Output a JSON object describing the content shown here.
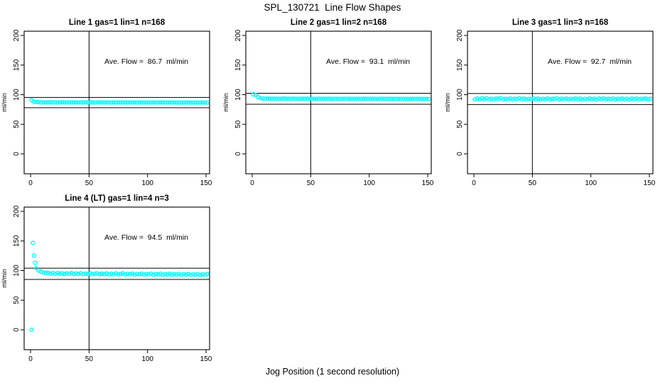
{
  "page": {
    "title": "SPL_130721  Line Flow Shapes",
    "xlabel": "Jog Position (1 second resolution)",
    "colors": {
      "background": "#ffffff",
      "point": "#00ffff",
      "axis": "#000000"
    }
  },
  "chart_data": [
    {
      "type": "scatter",
      "title": "Line 1 gas=1 lin=1 n=168",
      "ylabel": "ml/min",
      "ave_flow": 86.7,
      "annotation": "Ave. Flow =  86.7  ml/min",
      "annotation_pos": {
        "x": 99,
        "y": 152
      },
      "x_ticks": [
        0,
        50,
        100,
        150
      ],
      "y_ticks": [
        0,
        50,
        100,
        150,
        200
      ],
      "xlim": [
        -6,
        153
      ],
      "ylim": [
        -33,
        207
      ],
      "vline_x": 50,
      "hlines": [
        95.4,
        78.0
      ],
      "marker": "open-circle",
      "series": {
        "x_start": 1,
        "x_step": 2,
        "y": [
          90.5,
          88.2,
          87.4,
          87.8,
          87.0,
          86.7,
          87.3,
          86.9,
          87.5,
          86.8,
          87.2,
          86.6,
          87.0,
          87.4,
          86.8,
          87.1,
          86.7,
          87.3,
          86.9,
          87.2,
          86.6,
          87.0,
          86.8,
          87.3,
          86.7,
          87.1,
          86.9,
          86.6,
          87.2,
          86.8,
          87.0,
          86.7,
          87.2,
          86.9,
          86.6,
          87.1,
          86.8,
          87.0,
          86.6,
          86.9,
          87.1,
          86.7,
          86.9,
          86.6,
          87.0,
          86.8,
          86.6,
          86.9,
          86.7,
          87.0,
          86.6,
          86.8,
          86.9,
          86.6,
          86.8,
          87.0,
          86.6,
          86.9,
          86.7,
          86.8,
          86.6,
          86.9,
          86.7,
          86.8,
          86.5,
          86.8,
          86.6,
          86.9,
          86.5,
          86.7,
          86.8,
          86.5,
          86.7,
          86.6,
          86.8,
          86.5
        ]
      },
      "extra_points": []
    },
    {
      "type": "scatter",
      "title": "Line 2 gas=1 lin=2 n=168",
      "ylabel": "ml/min",
      "ave_flow": 93.1,
      "annotation": "Ave. Flow =  93.1  ml/min",
      "annotation_pos": {
        "x": 99,
        "y": 152
      },
      "x_ticks": [
        0,
        50,
        100,
        150
      ],
      "y_ticks": [
        0,
        50,
        100,
        150,
        200
      ],
      "xlim": [
        -6,
        153
      ],
      "ylim": [
        -33,
        207
      ],
      "vline_x": 50,
      "hlines": [
        102.4,
        83.8
      ],
      "marker": "open-circle",
      "series": {
        "x_start": 1,
        "x_step": 2,
        "y": [
          100.6,
          99.4,
          96.2,
          94.3,
          93.6,
          93.2,
          93.5,
          93.0,
          93.4,
          93.1,
          93.3,
          92.9,
          93.2,
          93.5,
          93.0,
          93.3,
          92.9,
          93.4,
          93.1,
          93.2,
          92.9,
          93.3,
          93.0,
          93.4,
          92.9,
          93.2,
          93.0,
          92.8,
          93.3,
          93.0,
          93.2,
          92.9,
          93.3,
          93.1,
          92.8,
          93.2,
          93.0,
          93.1,
          92.8,
          93.1,
          93.2,
          92.9,
          93.1,
          92.8,
          93.2,
          93.0,
          92.8,
          93.1,
          92.9,
          93.1,
          92.8,
          93.0,
          93.1,
          92.8,
          93.0,
          93.2,
          92.8,
          93.1,
          92.9,
          93.0,
          92.8,
          93.0,
          92.9,
          93.0,
          92.7,
          93.0,
          92.8,
          93.0,
          92.7,
          92.9,
          93.0,
          92.7,
          92.9,
          92.8,
          93.0,
          92.7
        ]
      },
      "extra_points": []
    },
    {
      "type": "scatter",
      "title": "Line 3 gas=1 lin=3 n=168",
      "ylabel": "ml/min",
      "ave_flow": 92.7,
      "annotation": "Ave. Flow =  92.7  ml/min",
      "annotation_pos": {
        "x": 99,
        "y": 152
      },
      "x_ticks": [
        0,
        50,
        100,
        150
      ],
      "y_ticks": [
        0,
        50,
        100,
        150,
        200
      ],
      "xlim": [
        -6,
        153
      ],
      "ylim": [
        -33,
        207
      ],
      "vline_x": 50,
      "hlines": [
        102.0,
        83.4
      ],
      "marker": "open-circle",
      "series": {
        "x_start": 1,
        "x_step": 2,
        "y": [
          92.0,
          93.5,
          91.8,
          93.8,
          92.5,
          94.0,
          92.2,
          93.2,
          91.9,
          93.6,
          92.8,
          94.1,
          92.0,
          93.0,
          92.4,
          93.8,
          91.8,
          93.3,
          92.6,
          94.0,
          92.1,
          93.5,
          91.9,
          93.1,
          92.7,
          93.9,
          92.2,
          93.4,
          91.8,
          93.0,
          92.5,
          93.7,
          92.0,
          93.2,
          92.8,
          93.9,
          91.9,
          93.3,
          92.4,
          93.6,
          92.1,
          93.0,
          92.6,
          93.8,
          92.0,
          93.4,
          91.8,
          93.1,
          92.5,
          93.7,
          92.2,
          93.3,
          91.9,
          93.5,
          92.7,
          93.8,
          92.0,
          93.2,
          92.4,
          93.6,
          91.8,
          93.0,
          92.6,
          93.7,
          92.1,
          93.3,
          91.9,
          93.4,
          92.5,
          93.6,
          92.0,
          93.1,
          92.7,
          93.5,
          91.9,
          93.2
        ]
      },
      "extra_points": []
    },
    {
      "type": "scatter",
      "title": "Line 4 (LT) gas=1 lin=4 n=3",
      "ylabel": "ml/min",
      "ave_flow": 94.5,
      "annotation": "Ave. Flow =  94.5  ml/min",
      "annotation_pos": {
        "x": 99,
        "y": 152
      },
      "x_ticks": [
        0,
        50,
        100,
        150
      ],
      "y_ticks": [
        0,
        50,
        100,
        150,
        200
      ],
      "xlim": [
        -6,
        153
      ],
      "ylim": [
        -33,
        207
      ],
      "vline_x": 50,
      "hlines": [
        104.0,
        85.1
      ],
      "marker": "open-circle",
      "series": {
        "x_start": 5,
        "x_step": 2,
        "y": [
          104.0,
          100.2,
          98.0,
          96.5,
          95.8,
          96.6,
          94.9,
          95.9,
          94.3,
          96.1,
          94.7,
          95.6,
          94.0,
          95.3,
          94.6,
          95.9,
          93.9,
          95.1,
          94.4,
          95.6,
          93.8,
          94.9,
          94.2,
          95.4,
          93.7,
          94.8,
          95.5,
          93.6,
          94.7,
          94.0,
          95.2,
          93.5,
          94.6,
          93.9,
          95.1,
          93.4,
          94.5,
          95.3,
          93.3,
          94.4,
          93.8,
          95.0,
          93.2,
          94.3,
          93.7,
          94.9,
          93.1,
          94.2,
          93.6,
          94.8,
          93.0,
          94.1,
          93.5,
          94.7,
          92.9,
          94.0,
          93.4,
          94.6,
          92.8,
          93.9,
          93.3,
          94.5,
          92.7,
          93.8,
          93.2,
          94.4,
          92.6,
          93.7,
          93.1,
          94.3,
          92.5,
          93.6,
          93.0,
          94.2
        ]
      },
      "extra_points": [
        [
          1,
          0
        ],
        [
          2,
          147
        ],
        [
          3,
          125
        ],
        [
          4,
          113
        ]
      ]
    }
  ]
}
